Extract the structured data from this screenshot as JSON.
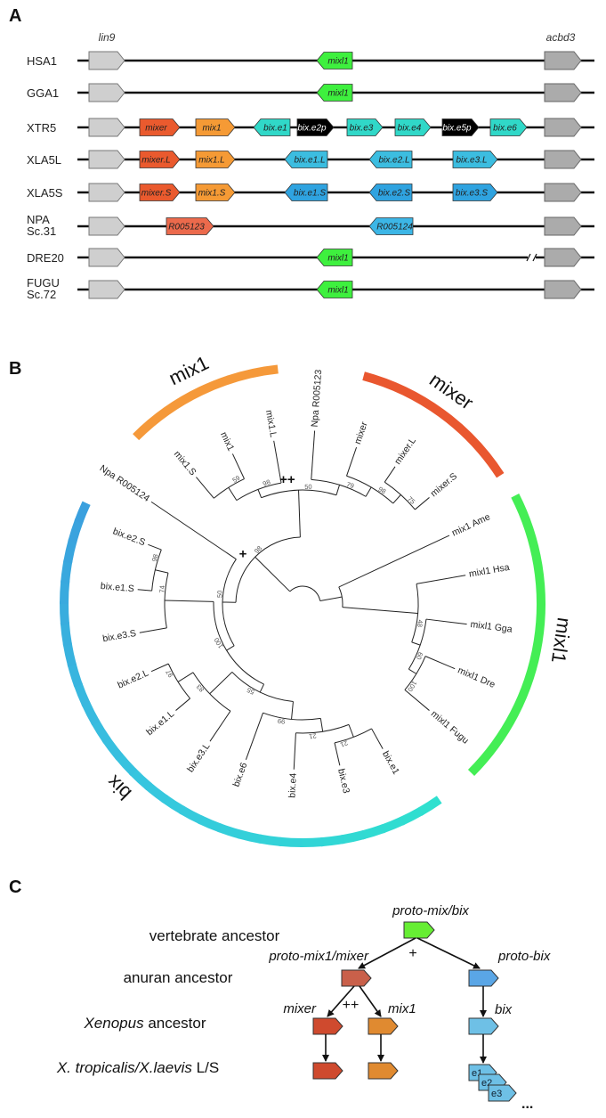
{
  "panel_labels": {
    "a": "A",
    "b": "B",
    "c": "C"
  },
  "panel_a": {
    "flank_left": "lin9",
    "flank_right": "acbd3",
    "flank_colors": {
      "left": "#cfcfcf",
      "right": "#ababab"
    },
    "rows": [
      {
        "name": [
          "HSA1"
        ],
        "genes": [
          {
            "label": "mixl1",
            "color": "#3ef03e",
            "dir": "left"
          }
        ]
      },
      {
        "name": [
          "GGA1"
        ],
        "genes": [
          {
            "label": "mixl1",
            "color": "#3ef03e",
            "dir": "left"
          }
        ]
      },
      {
        "name": [
          "XTR5"
        ],
        "genes": [
          {
            "label": "mixer",
            "color": "#ea5a2e",
            "dir": "right"
          },
          {
            "label": "mix1",
            "color": "#f59a35",
            "dir": "right"
          },
          {
            "label": "bix.e1",
            "color": "#30d8c8",
            "dir": "left"
          },
          {
            "label": "bix.e2p",
            "color": "#000000",
            "dir": "right"
          },
          {
            "label": "bix.e3",
            "color": "#30d8c8",
            "dir": "right"
          },
          {
            "label": "bix.e4",
            "color": "#30d8c8",
            "dir": "right"
          },
          {
            "label": "bix.e5p",
            "color": "#000000",
            "dir": "right"
          },
          {
            "label": "bix.e6",
            "color": "#30d8c8",
            "dir": "right"
          }
        ]
      },
      {
        "name": [
          "XLA5L"
        ],
        "genes": [
          {
            "label": "mixer.L",
            "color": "#ea5a2e",
            "dir": "right"
          },
          {
            "label": "mix1.L",
            "color": "#f59a35",
            "dir": "right"
          },
          {
            "label": "bix.e1.L",
            "color": "#3cbde0",
            "dir": "left"
          },
          {
            "label": "bix.e2.L",
            "color": "#3cbde0",
            "dir": "left"
          },
          {
            "label": "bix.e3.L",
            "color": "#3cbde0",
            "dir": "right"
          }
        ]
      },
      {
        "name": [
          "XLA5S"
        ],
        "genes": [
          {
            "label": "mixer.S",
            "color": "#ea5a2e",
            "dir": "right"
          },
          {
            "label": "mix1.S",
            "color": "#f59a35",
            "dir": "right"
          },
          {
            "label": "bix.e1.S",
            "color": "#2fa3e0",
            "dir": "left"
          },
          {
            "label": "bix.e2.S",
            "color": "#2fa3e0",
            "dir": "left"
          },
          {
            "label": "bix.e3.S",
            "color": "#2fa3e0",
            "dir": "right"
          }
        ]
      },
      {
        "name": [
          "NPA",
          "Sc.31"
        ],
        "genes": [
          {
            "label": "R005123",
            "color": "#ec6a4c",
            "dir": "right"
          },
          {
            "label": "R005124",
            "color": "#3cb6e6",
            "dir": "left"
          }
        ]
      },
      {
        "name": [
          "DRE20"
        ],
        "contig_break": true,
        "genes": [
          {
            "label": "mixl1",
            "color": "#3ef03e",
            "dir": "left"
          }
        ]
      },
      {
        "name": [
          "FUGU",
          "Sc.72"
        ],
        "genes": [
          {
            "label": "mixl1",
            "color": "#3ef03e",
            "dir": "left"
          }
        ]
      }
    ]
  },
  "panel_b": {
    "clades": [
      {
        "label": "mix1",
        "colors": [
          "#f5993a"
        ]
      },
      {
        "label": "mixer",
        "colors": [
          "#e9572f"
        ]
      },
      {
        "label": "mixl1",
        "colors": [
          "#44ee55"
        ]
      },
      {
        "label": "bix",
        "colors": [
          "#2fe0cf",
          "#36c6df",
          "#3aa0de"
        ]
      }
    ],
    "tree": {
      "children": [
        {
          "support": "98",
          "mark": "+",
          "children": [
            {
              "support": "50",
              "mark": "++",
              "children": [
                {
                  "support": "98",
                  "children": [
                    {
                      "support": "59",
                      "children": [
                        "mix1.S",
                        "mix1"
                      ]
                    },
                    "mix1.L"
                  ]
                },
                {
                  "support": "79",
                  "children": [
                    "Npa R005123",
                    {
                      "support": "98",
                      "children": [
                        "mixer",
                        {
                          "support": "75",
                          "children": [
                            "mixer.L",
                            "mixer.S"
                          ]
                        }
                      ]
                    }
                  ]
                }
              ]
            },
            {
              "support": "50",
              "children": [
                "Npa R005124",
                {
                  "support": "100",
                  "children": [
                    {
                      "support": "74",
                      "children": [
                        {
                          "support": "98",
                          "children": [
                            "bix.e2.S",
                            "bix.e1.S"
                          ]
                        },
                        "bix.e3.S"
                      ]
                    },
                    {
                      "support": "55",
                      "children": [
                        {
                          "support": "83",
                          "children": [
                            {
                              "support": "97",
                              "children": [
                                "bix.e2.L",
                                "bix.e1.L"
                              ]
                            },
                            "bix.e3.L"
                          ]
                        },
                        {
                          "support": "99",
                          "children": [
                            "bix.e6",
                            {
                              "support": "21",
                              "children": [
                                "bix.e4",
                                {
                                  "support": "21",
                                  "children": [
                                    "bix.e3",
                                    "bix.e1"
                                  ]
                                }
                              ]
                            }
                          ]
                        }
                      ]
                    }
                  ]
                }
              ]
            }
          ]
        },
        {
          "children": [
            "mix1 Ame",
            {
              "support": "48",
              "children": [
                "mixl1 Hsa",
                {
                  "support": "60",
                  "children": [
                    "mixl1 Gga",
                    {
                      "support": "100",
                      "children": [
                        "mixl1 Dre",
                        "mixl1 Fugu"
                      ]
                    }
                  ]
                }
              ]
            }
          ]
        }
      ]
    }
  },
  "panel_c": {
    "stages": {
      "vertebrate": "vertebrate ancestor",
      "anuran": "anuran ancestor",
      "xenopus_italic": "Xenopus",
      "xenopus_rest": " ancestor",
      "extant_italic": "X. tropicalis/X.laevis",
      "extant_rest": " L/S"
    },
    "genes": {
      "root": "proto-mix/bix",
      "proto_mix1_mixer": "proto-mix1/mixer",
      "proto_bix": "proto-bix",
      "mixer": "mixer",
      "mix1": "mix1",
      "bix": "bix"
    },
    "events": {
      "first": "+",
      "second": "++"
    },
    "bix_copies": [
      "e1",
      "e2",
      "e3"
    ],
    "ellipsis": "...",
    "colors": {
      "root": "#66ee33",
      "proto_mix1_mixer": "#c9604a",
      "proto_bix": "#5aa6e6",
      "mixer": "#cf4a2e",
      "mix1": "#e08a30",
      "bix": "#6ec0e6"
    }
  }
}
